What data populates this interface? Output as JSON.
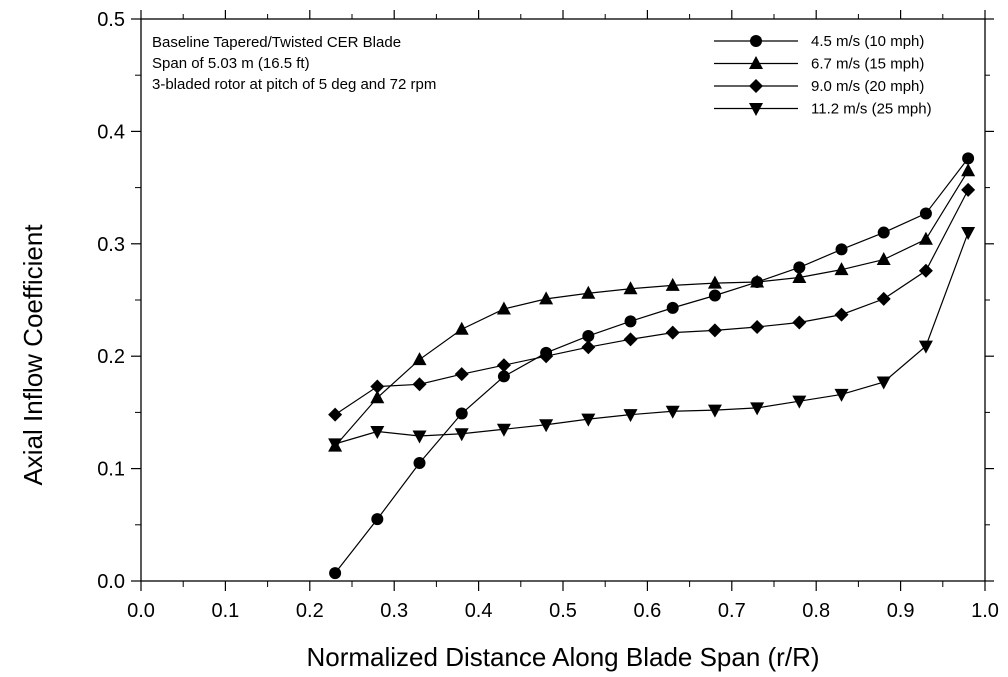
{
  "chart_data": {
    "type": "line",
    "title": "",
    "xlabel": "Normalized Distance Along Blade Span (r/R)",
    "ylabel": "Axial Inflow Coefficient",
    "xlim": [
      0.0,
      1.0
    ],
    "ylim": [
      0.0,
      0.5
    ],
    "x_ticks": [
      "0.0",
      "0.1",
      "0.2",
      "0.3",
      "0.4",
      "0.5",
      "0.6",
      "0.7",
      "0.8",
      "0.9",
      "1.0"
    ],
    "y_ticks": [
      "0.0",
      "0.1",
      "0.2",
      "0.3",
      "0.4",
      "0.5"
    ],
    "annotations": [
      "Baseline Tapered/Twisted CER Blade",
      "Span of 5.03 m (16.5 ft)",
      "3-bladed rotor at pitch of 5 deg and 72 rpm"
    ],
    "legend_position": "top-right",
    "grid": false,
    "line_color": "#000000",
    "series": [
      {
        "name": "4.5 m/s (10 mph)",
        "marker": "circle",
        "x": [
          0.23,
          0.28,
          0.33,
          0.38,
          0.43,
          0.48,
          0.53,
          0.58,
          0.63,
          0.68,
          0.73,
          0.78,
          0.83,
          0.88,
          0.93,
          0.98
        ],
        "y": [
          0.007,
          0.055,
          0.105,
          0.149,
          0.182,
          0.203,
          0.218,
          0.231,
          0.243,
          0.254,
          0.266,
          0.279,
          0.295,
          0.31,
          0.327,
          0.376
        ]
      },
      {
        "name": "6.7 m/s (15 mph)",
        "marker": "triangle-up",
        "x": [
          0.23,
          0.28,
          0.33,
          0.38,
          0.43,
          0.48,
          0.53,
          0.58,
          0.63,
          0.68,
          0.73,
          0.78,
          0.83,
          0.88,
          0.93,
          0.98
        ],
        "y": [
          0.12,
          0.163,
          0.197,
          0.224,
          0.242,
          0.251,
          0.256,
          0.26,
          0.263,
          0.265,
          0.266,
          0.27,
          0.277,
          0.286,
          0.304,
          0.365
        ]
      },
      {
        "name": "9.0 m/s (20 mph)",
        "marker": "diamond",
        "x": [
          0.23,
          0.28,
          0.33,
          0.38,
          0.43,
          0.48,
          0.53,
          0.58,
          0.63,
          0.68,
          0.73,
          0.78,
          0.83,
          0.88,
          0.93,
          0.98
        ],
        "y": [
          0.148,
          0.173,
          0.175,
          0.184,
          0.192,
          0.2,
          0.208,
          0.215,
          0.221,
          0.223,
          0.226,
          0.23,
          0.237,
          0.251,
          0.276,
          0.348
        ]
      },
      {
        "name": "11.2 m/s (25 mph)",
        "marker": "triangle-down",
        "x": [
          0.23,
          0.28,
          0.33,
          0.38,
          0.43,
          0.48,
          0.53,
          0.58,
          0.63,
          0.68,
          0.73,
          0.78,
          0.83,
          0.88,
          0.93,
          0.98
        ],
        "y": [
          0.122,
          0.133,
          0.129,
          0.131,
          0.135,
          0.139,
          0.144,
          0.148,
          0.151,
          0.152,
          0.154,
          0.16,
          0.166,
          0.177,
          0.209,
          0.31
        ]
      }
    ]
  }
}
